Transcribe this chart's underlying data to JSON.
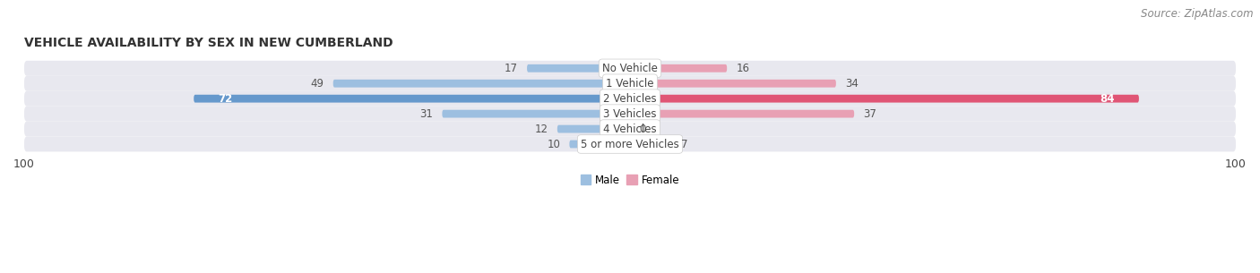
{
  "title": "VEHICLE AVAILABILITY BY SEX IN NEW CUMBERLAND",
  "source": "Source: ZipAtlas.com",
  "categories": [
    "No Vehicle",
    "1 Vehicle",
    "2 Vehicles",
    "3 Vehicles",
    "4 Vehicles",
    "5 or more Vehicles"
  ],
  "male_values": [
    17,
    49,
    72,
    31,
    12,
    10
  ],
  "female_values": [
    16,
    34,
    84,
    37,
    0,
    7
  ],
  "male_color": "#9dbfe0",
  "female_color": "#e8a0b4",
  "male_color_dark": "#6699cc",
  "female_color_dark": "#e05575",
  "row_bg_color": "#e8e8ef",
  "row_bg_color2": "#ededf2",
  "max_val": 100,
  "legend_male": "Male",
  "legend_female": "Female",
  "title_fontsize": 10,
  "source_fontsize": 8.5,
  "label_fontsize": 8.5,
  "value_fontsize": 8.5,
  "axis_fontsize": 9
}
